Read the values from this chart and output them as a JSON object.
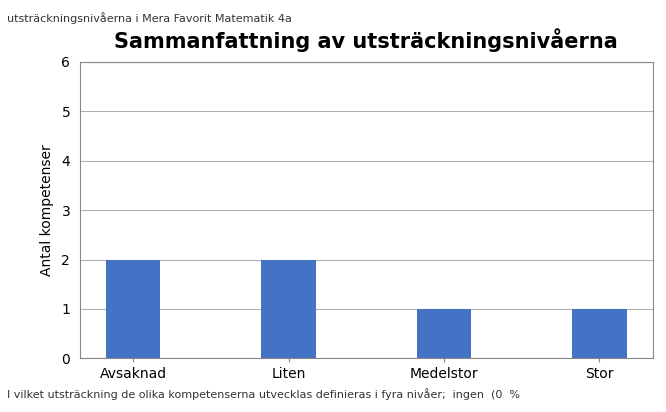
{
  "title_line1": "Mera Favorit Matematik 4a -",
  "title_line2": "Sammanfattning av utsträckningsnivåerna",
  "categories": [
    "Avsaknad",
    "Liten",
    "Medelstor",
    "Stor"
  ],
  "values": [
    2,
    2,
    1,
    1
  ],
  "bar_color": "#4472C4",
  "ylabel": "Antal kompetenser",
  "ylim": [
    0,
    6
  ],
  "yticks": [
    0,
    1,
    2,
    3,
    4,
    5,
    6
  ],
  "background_color": "#ffffff",
  "grid_color": "#b0b0b0",
  "title_fontsize": 15,
  "label_fontsize": 10,
  "tick_fontsize": 10,
  "bar_width": 0.35,
  "caption_top": "utsträckningsnivåerna i Mera Favorit Matematik 4a",
  "caption_bottom": "I vilket utsträckning de olika kompetenserna utvecklas definieras i fyra nivåer;  ingen  (0  %",
  "caption_fontsize": 8,
  "border_color": "#888888"
}
